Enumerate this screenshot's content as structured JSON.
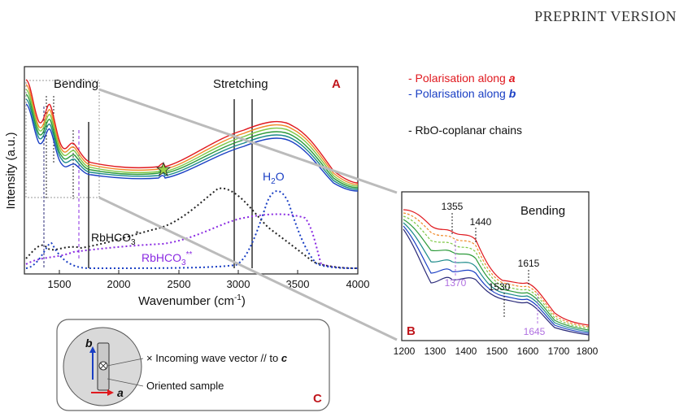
{
  "header": {
    "title": "PREPRINT VERSION"
  },
  "colors": {
    "red": "#e0191f",
    "orange": "#f08a28",
    "lightgreen": "#7ec845",
    "green": "#2c9a3a",
    "teal": "#1b8a8a",
    "blue": "#1a3fc4",
    "navy": "#2b2b7a",
    "purple": "#8a2be2",
    "lightpurple": "#b070e0",
    "darkred": "#c0161c"
  },
  "legend": {
    "line1": "- Polarisation along ",
    "sym1": "a",
    "line2": "- Polarisation along ",
    "sym2": "b",
    "line3": "- RbO-coplanar chains"
  },
  "panelA": {
    "letter": "A",
    "xlabel": "Wavenumber (cm",
    "xlabel_sup": "-1",
    "xlabel_end": ")",
    "ylabel": "Intensity (a.u.)",
    "xticks": [
      "1500",
      "2000",
      "2500",
      "3000",
      "3500",
      "4000"
    ],
    "bending": "Bending",
    "stretching": "Stretching",
    "h2o": "H",
    "h2o_sub": "2",
    "h2o_end": "O",
    "ref1": "RbHCO",
    "ref1_sub": "3",
    "ref1_sup": "*",
    "ref2": "RbHCO",
    "ref2_sub": "3",
    "ref2_sup": "**",
    "star_label": "★"
  },
  "panelB": {
    "letter": "B",
    "title": "Bending",
    "xticks": [
      "1200",
      "1300",
      "1400",
      "1500",
      "1600",
      "1700",
      "1800"
    ],
    "peaks_black": [
      "1355",
      "1440",
      "1530",
      "1615"
    ],
    "peaks_purple": [
      "1370",
      "1645"
    ]
  },
  "panelC": {
    "letter": "C",
    "b_label": "b",
    "a_label": "a",
    "incoming": "× Incoming wave vector // to ",
    "incoming_sym": "c",
    "sample": "Oriented sample"
  },
  "chart_data": {
    "type": "line",
    "title": "",
    "xlabel": "Wavenumber (cm-1)",
    "ylabel": "Intensity (a.u.)",
    "xlim": [
      1200,
      4000
    ],
    "series": [
      {
        "name": "Polarisation along a",
        "color": "#e0191f"
      },
      {
        "name": "Polarisation along b",
        "color": "#1a3fc4"
      },
      {
        "name": "RbHCO3*",
        "color": "#222222"
      },
      {
        "name": "RbHCO3**",
        "color": "#8a2be2"
      },
      {
        "name": "H2O",
        "color": "#1a3fc4"
      }
    ],
    "annotations": [
      "1355",
      "1440",
      "1530",
      "1615",
      "1370",
      "1645"
    ]
  }
}
